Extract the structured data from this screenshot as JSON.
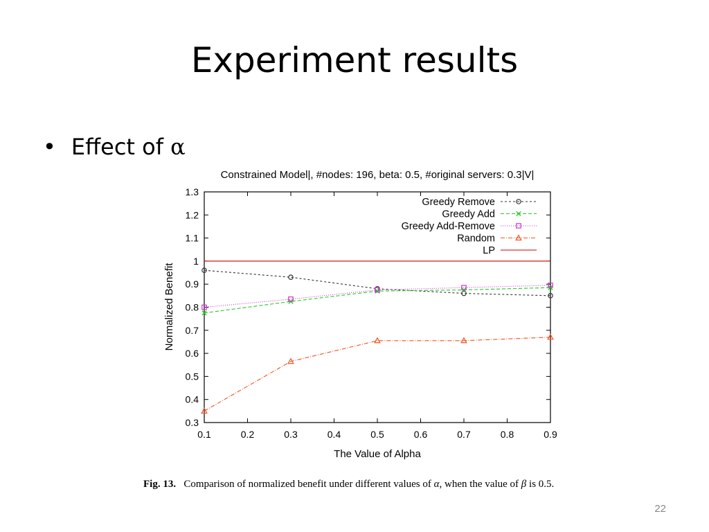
{
  "slide": {
    "title": "Experiment results",
    "bullet_prefix": "Effect of",
    "bullet_symbol": "α",
    "page_number": "22"
  },
  "caption": {
    "label": "Fig. 13.",
    "text_1": "Comparison of normalized benefit under different values of",
    "alpha": "α",
    "text_2": ", when the value of",
    "beta": "β",
    "text_3": "is 0.5."
  },
  "chart_data": {
    "type": "line",
    "title": "Constrained Model|, #nodes: 196, beta: 0.5, #original servers: 0.3|V|",
    "xlabel": "The Value of Alpha",
    "ylabel": "Normalized Benefit",
    "xlim": [
      0.1,
      0.9
    ],
    "ylim": [
      0.3,
      1.3
    ],
    "xticks": [
      "0.1",
      "0.2",
      "0.3",
      "0.4",
      "0.5",
      "0.6",
      "0.7",
      "0.8",
      "0.9"
    ],
    "yticks": [
      "0.3",
      "0.4",
      "0.5",
      "0.6",
      "0.7",
      "0.8",
      "0.9",
      "1",
      "1.1",
      "1.2",
      "1.3"
    ],
    "legend_position": "top-right",
    "x": [
      0.1,
      0.3,
      0.5,
      0.7,
      0.9
    ],
    "series": [
      {
        "name": "Greedy Remove",
        "values": [
          0.96,
          0.93,
          0.88,
          0.86,
          0.85
        ],
        "color": "#333333",
        "marker": "circle",
        "dash": "3,3"
      },
      {
        "name": "Greedy Add",
        "values": [
          0.775,
          0.825,
          0.87,
          0.875,
          0.885
        ],
        "color": "#22cc22",
        "marker": "x",
        "dash": "5,3"
      },
      {
        "name": "Greedy Add-Remove",
        "values": [
          0.8,
          0.835,
          0.875,
          0.885,
          0.895
        ],
        "color": "#cc33cc",
        "marker": "square",
        "dash": "1,2"
      },
      {
        "name": "Random",
        "values": [
          0.35,
          0.565,
          0.655,
          0.655,
          0.67
        ],
        "color": "#ee5522",
        "marker": "triangle",
        "dash": "6,2,1,2"
      },
      {
        "name": "LP",
        "values": [
          1.0,
          1.0,
          1.0,
          1.0,
          1.0
        ],
        "color": "#cc0000",
        "marker": "none",
        "dash": ""
      }
    ]
  }
}
